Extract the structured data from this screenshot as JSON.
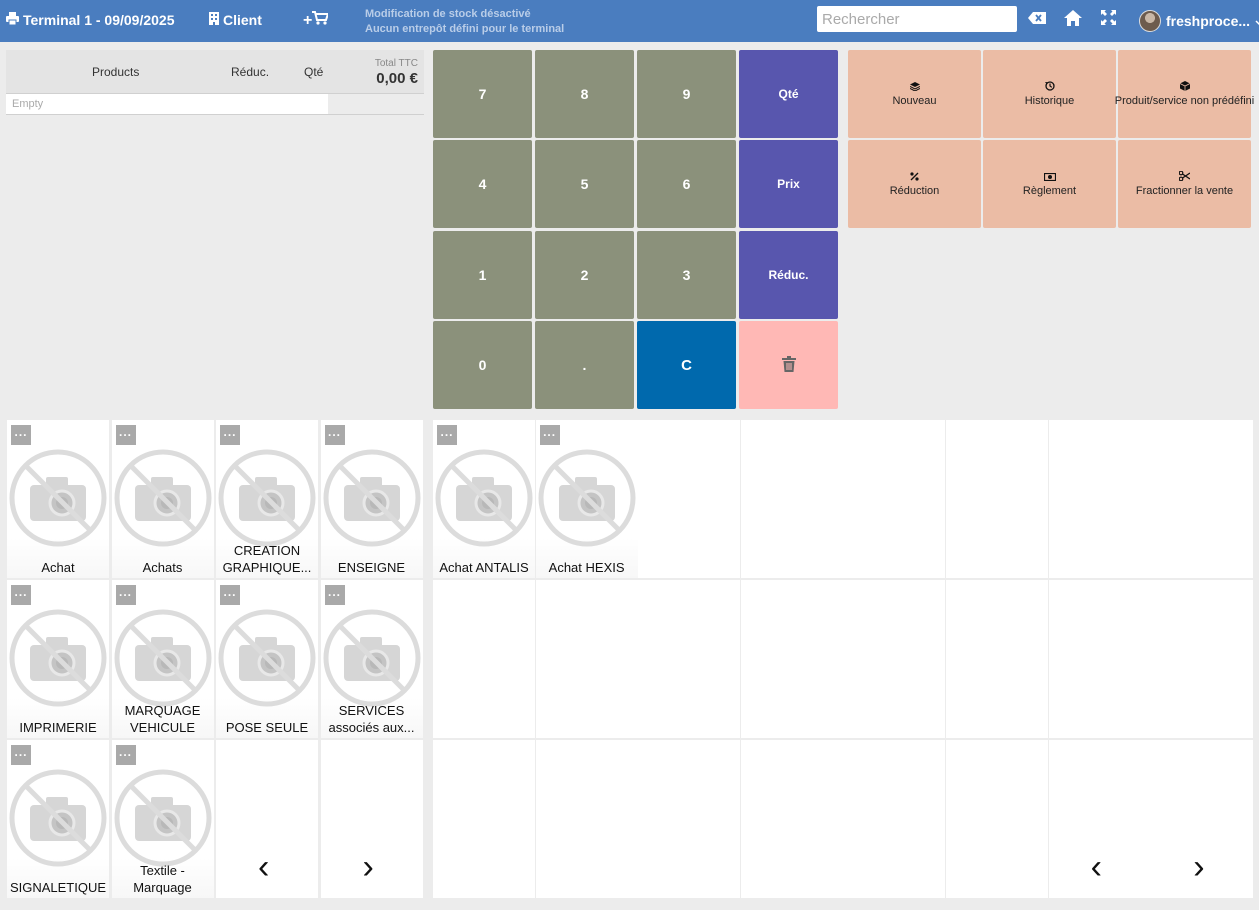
{
  "header": {
    "terminal_title": "Terminal 1 - 09/09/2025",
    "client_label": "Client",
    "add_cart_label": "+",
    "stock_line1": "Modification de stock désactivé",
    "stock_line2": "Aucun entrepôt défini pour le terminal",
    "search_placeholder": "Rechercher",
    "user_name": "freshproce..."
  },
  "ticket": {
    "col_products": "Products",
    "col_reduc": "Réduc.",
    "col_qty": "Qté",
    "total_label": "Total TTC",
    "total_value": "0,00 €",
    "empty_label": "Empty"
  },
  "keypad": {
    "k7": "7",
    "k8": "8",
    "k9": "9",
    "qty": "Qté",
    "k4": "4",
    "k5": "5",
    "k6": "6",
    "price": "Prix",
    "k1": "1",
    "k2": "2",
    "k3": "3",
    "reduc": "Réduc.",
    "k0": "0",
    "dot": ".",
    "clear": "C"
  },
  "actions": {
    "new": "Nouveau",
    "history": "Historique",
    "free_product": "Produit/service non prédéfini",
    "discount": "Réduction",
    "payment": "Règlement",
    "split": "Fractionner la vente"
  },
  "categories": {
    "more": "...",
    "items": [
      "Achat",
      "Achats",
      "CREATION GRAPHIQUE...",
      "ENSEIGNE",
      "IMPRIMERIE",
      "MARQUAGE VEHICULE",
      "POSE SEULE",
      "SERVICES associés aux...",
      "SIGNALETIQUE",
      "Textile - Marquage"
    ]
  },
  "products": {
    "items": [
      "Achat ANTALIS",
      "Achat HEXIS"
    ]
  },
  "nav": {
    "prev": "‹",
    "next": "›"
  },
  "colors": {
    "topbar": "#4a7dbf",
    "keypad_num": "#8b917b",
    "keypad_op": "#5856ae",
    "keypad_clear": "#0069ad",
    "keypad_delete": "#ffb8b5",
    "action": "#ebbca5"
  },
  "icons": {
    "terminal": "printer-icon",
    "client": "building-icon",
    "cart": "cart-icon",
    "clear_search": "backspace-icon",
    "home": "home-icon",
    "fullscreen": "expand-icon",
    "delete": "trash-icon",
    "new": "layers-icon",
    "history": "history-icon",
    "free_product": "cube-icon",
    "discount": "percent-icon",
    "payment": "money-icon",
    "split": "scissors-icon",
    "no_image": "no-photo-icon"
  }
}
